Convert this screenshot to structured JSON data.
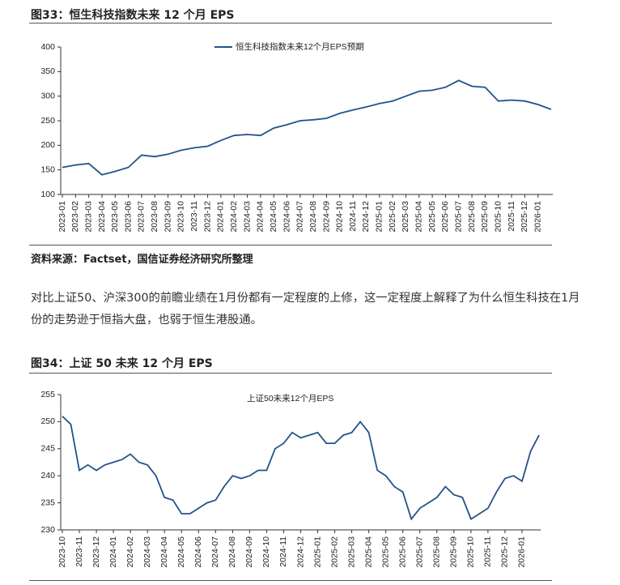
{
  "chart_data": [
    {
      "type": "line",
      "title": "图33：恒生科技指数未来 12 个月 EPS",
      "source": "资料来源：Factset，国信证券经济研究所整理",
      "categories": [
        "2023-01",
        "2023-02",
        "2023-03",
        "2023-04",
        "2023-05",
        "2023-06",
        "2023-07",
        "2023-08",
        "2023-09",
        "2023-10",
        "2023-11",
        "2023-12",
        "2024-01",
        "2024-02",
        "2024-03",
        "2024-04",
        "2024-05",
        "2024-06",
        "2024-07",
        "2024-08",
        "2024-09",
        "2024-10",
        "2024-11",
        "2024-12",
        "2025-01",
        "2025-02",
        "2025-03",
        "2025-04",
        "2025-05",
        "2025-06",
        "2025-07",
        "2025-08",
        "2025-09",
        "2025-10",
        "2025-11",
        "2025-12",
        "2026-01",
        null
      ],
      "series": [
        {
          "name": "恒生科技指数未来12个月EPS预期",
          "color": "#24528a",
          "values": [
            155,
            160,
            163,
            140,
            147,
            155,
            180,
            177,
            182,
            190,
            195,
            198,
            210,
            220,
            222,
            220,
            235,
            242,
            250,
            252,
            255,
            265,
            272,
            278,
            285,
            290,
            300,
            310,
            312,
            318,
            332,
            320,
            318,
            290,
            292,
            290,
            283,
            273
          ]
        }
      ],
      "ylim": [
        100,
        400
      ],
      "yticks": [
        100,
        150,
        200,
        250,
        300,
        350,
        400
      ]
    },
    {
      "type": "line",
      "title": "图34：上证 50 未来 12 个月 EPS",
      "categories": [
        "2023-10",
        null,
        "2023-11",
        null,
        "2023-12",
        null,
        "2024-01",
        null,
        "2024-02",
        null,
        "2024-03",
        null,
        "2024-04",
        null,
        "2024-05",
        null,
        "2024-06",
        null,
        "2024-07",
        null,
        "2024-08",
        null,
        "2024-09",
        null,
        "2024-10",
        null,
        "2024-11",
        null,
        "2024-12",
        null,
        "2025-01",
        null,
        "2025-02",
        null,
        "2025-03",
        null,
        "2025-04",
        null,
        "2025-05",
        null,
        "2025-06",
        null,
        "2025-07",
        null,
        "2025-08",
        null,
        "2025-09",
        null,
        "2025-10",
        null,
        "2025-11",
        null,
        "2025-12",
        null,
        "2026-01",
        null,
        null
      ],
      "series": [
        {
          "name": "上证50未来12个月EPS",
          "color": "#24528a",
          "values": [
            251,
            249.5,
            241,
            242,
            241,
            242,
            242.5,
            243,
            244,
            242.5,
            242,
            240,
            236,
            235.5,
            233,
            233,
            234,
            235,
            235.5,
            238,
            240,
            239.5,
            240,
            241,
            241,
            245,
            246,
            248,
            247,
            247.5,
            248,
            246,
            246,
            247.5,
            248,
            250,
            248,
            241,
            240,
            238,
            237,
            232,
            234,
            235,
            236,
            238,
            236.5,
            236,
            232,
            233,
            234,
            237,
            239.5,
            240,
            239,
            244.5,
            247.5
          ]
        }
      ],
      "ylim": [
        230,
        255
      ],
      "yticks": [
        230,
        235,
        240,
        245,
        250,
        255
      ]
    }
  ],
  "paragraph": "对比上证50、沪深300的前瞻业绩在1月份都有一定程度的上修，这一定程度上解释了为什么恒生科技在1月份的走势逊于恒指大盘，也弱于恒生港股通。"
}
